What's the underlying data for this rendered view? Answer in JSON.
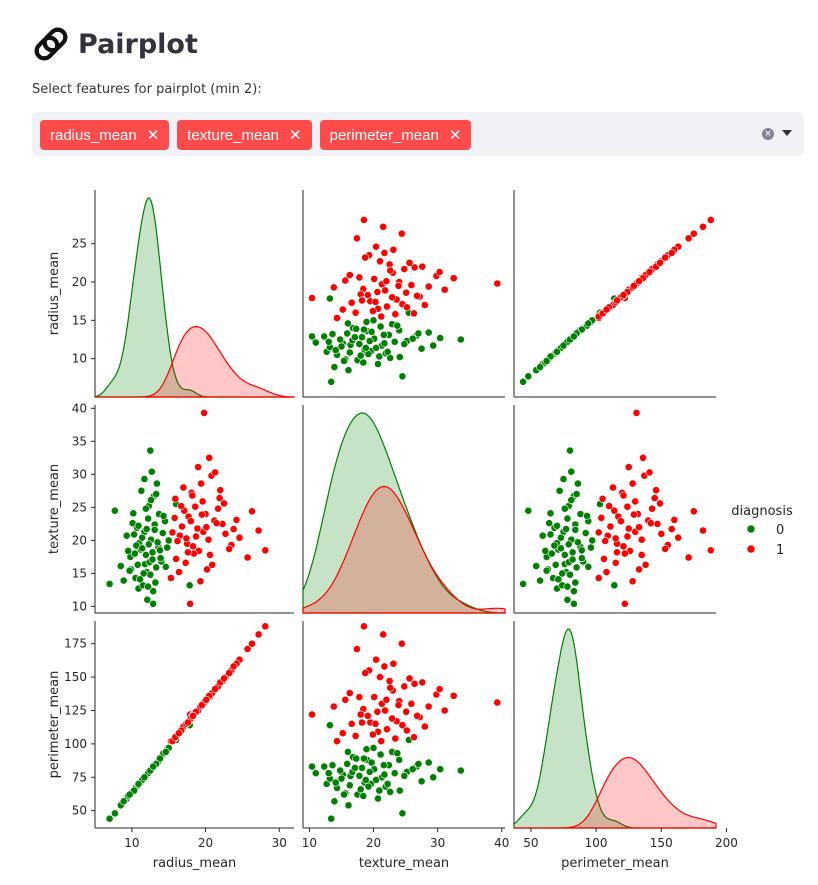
{
  "page": {
    "title": "Pairplot",
    "select_label": "Select features for pairplot (min 2):",
    "selected_features": [
      "radius_mean",
      "texture_mean",
      "perimeter_mean"
    ]
  },
  "colors": {
    "accent": "#ff4b4b",
    "benign": "#008000",
    "malignant": "#ff0000"
  },
  "chart_data": {
    "type": "scatter",
    "subtype": "pairplot",
    "variables": [
      "radius_mean",
      "texture_mean",
      "perimeter_mean"
    ],
    "hue": "diagnosis",
    "legend": {
      "title": "diagnosis",
      "placement": "right",
      "entries": [
        {
          "label": "0",
          "color": "#008000"
        },
        {
          "label": "1",
          "color": "#ff0000"
        }
      ]
    },
    "axes": {
      "radius_mean": {
        "range": [
          5,
          32
        ],
        "ticks": [
          10,
          15,
          20,
          25
        ],
        "xticks": [
          10,
          20,
          30
        ]
      },
      "texture_mean": {
        "range": [
          9,
          40.5
        ],
        "ticks": [
          10,
          15,
          20,
          25,
          30,
          35,
          40
        ],
        "xticks": [
          10,
          20,
          30,
          40
        ]
      },
      "perimeter_mean": {
        "range": [
          37,
          192
        ],
        "ticks": [
          50,
          75,
          100,
          125,
          150,
          175
        ],
        "xticks": [
          50,
          100,
          150,
          200
        ]
      }
    },
    "series": [
      {
        "name": "0",
        "color": "#008000",
        "points": [
          [
            12.0,
            15.2,
            77
          ],
          [
            11.2,
            18.6,
            71
          ],
          [
            13.1,
            22.4,
            84
          ],
          [
            10.5,
            14.3,
            67
          ],
          [
            12.6,
            20.1,
            81
          ],
          [
            9.8,
            17.5,
            62
          ],
          [
            14.0,
            16.8,
            90
          ],
          [
            11.7,
            21.3,
            75
          ],
          [
            13.6,
            19.0,
            88
          ],
          [
            10.9,
            12.7,
            70
          ],
          [
            12.3,
            25.2,
            79
          ],
          [
            8.5,
            16.1,
            54
          ],
          [
            13.4,
            28.6,
            86
          ],
          [
            11.5,
            13.2,
            74
          ],
          [
            12.8,
            18.2,
            82
          ],
          [
            9.3,
            20.7,
            59
          ],
          [
            14.5,
            22.9,
            94
          ],
          [
            10.2,
            24.1,
            65
          ],
          [
            12.1,
            11.0,
            78
          ],
          [
            13.9,
            17.3,
            89
          ],
          [
            11.0,
            19.6,
            70
          ],
          [
            12.5,
            14.8,
            80
          ],
          [
            7.7,
            24.5,
            48
          ],
          [
            13.0,
            26.7,
            83
          ],
          [
            11.8,
            16.4,
            76
          ],
          [
            10.7,
            21.9,
            68
          ],
          [
            12.9,
            12.3,
            83
          ],
          [
            14.8,
            18.9,
            96
          ],
          [
            9.9,
            15.6,
            63
          ],
          [
            12.2,
            23.3,
            78
          ],
          [
            11.4,
            20.4,
            73
          ],
          [
            13.3,
            15.9,
            85
          ],
          [
            10.4,
            18.0,
            66
          ],
          [
            12.7,
            30.4,
            81
          ],
          [
            14.2,
            21.1,
            92
          ],
          [
            11.9,
            17.8,
            76
          ],
          [
            8.9,
            13.9,
            57
          ],
          [
            13.7,
            24.0,
            88
          ],
          [
            10.1,
            22.6,
            64
          ],
          [
            12.4,
            16.7,
            79
          ],
          [
            11.3,
            27.5,
            72
          ],
          [
            13.2,
            13.6,
            84
          ],
          [
            15.0,
            20.0,
            97
          ],
          [
            10.6,
            19.2,
            68
          ],
          [
            12.0,
            21.7,
            77
          ],
          [
            9.5,
            18.4,
            61
          ],
          [
            11.6,
            15.0,
            74
          ],
          [
            13.5,
            19.7,
            86
          ],
          [
            12.6,
            26.1,
            81
          ],
          [
            10.8,
            16.3,
            69
          ],
          [
            14.3,
            23.7,
            93
          ],
          [
            11.1,
            14.1,
            71
          ],
          [
            6.98,
            13.4,
            44
          ],
          [
            12.3,
            19.4,
            79
          ],
          [
            13.8,
            18.5,
            89
          ],
          [
            10.3,
            20.9,
            65
          ],
          [
            11.9,
            24.8,
            76
          ],
          [
            12.8,
            17.1,
            82
          ],
          [
            9.7,
            15.4,
            62
          ],
          [
            13.1,
            21.6,
            84
          ],
          [
            11.4,
            18.8,
            73
          ],
          [
            14.6,
            16.0,
            94
          ],
          [
            10.9,
            22.2,
            70
          ],
          [
            12.2,
            13.0,
            78
          ],
          [
            13.3,
            27.0,
            85
          ],
          [
            17.85,
            13.2,
            114
          ],
          [
            12.5,
            33.6,
            80
          ],
          [
            11.7,
            29.3,
            75
          ],
          [
            16.0,
            25.5,
            103
          ],
          [
            12.9,
            10.4,
            83
          ]
        ]
      },
      {
        "name": "1",
        "color": "#ff0000",
        "points": [
          [
            17.9,
            10.4,
            122
          ],
          [
            20.6,
            17.8,
            135
          ],
          [
            19.7,
            21.3,
            130
          ],
          [
            15.3,
            14.3,
            102
          ],
          [
            22.3,
            22.5,
            147
          ],
          [
            18.6,
            25.1,
            124
          ],
          [
            16.5,
            20.7,
            109
          ],
          [
            21.2,
            23.0,
            140
          ],
          [
            19.1,
            18.4,
            126
          ],
          [
            17.1,
            24.5,
            114
          ],
          [
            23.5,
            19.3,
            155
          ],
          [
            18.1,
            27.2,
            120
          ],
          [
            20.2,
            15.6,
            133
          ],
          [
            16.8,
            22.1,
            111
          ],
          [
            24.6,
            20.4,
            163
          ],
          [
            19.4,
            28.6,
            128
          ],
          [
            17.5,
            19.5,
            116
          ],
          [
            21.9,
            26.4,
            145
          ],
          [
            15.8,
            23.4,
            104
          ],
          [
            18.9,
            21.8,
            125
          ],
          [
            25.7,
            17.4,
            171
          ],
          [
            20.0,
            24.0,
            132
          ],
          [
            17.3,
            16.6,
            115
          ],
          [
            22.7,
            21.0,
            150
          ],
          [
            19.0,
            31.1,
            125
          ],
          [
            16.2,
            19.9,
            107
          ],
          [
            21.5,
            22.6,
            142
          ],
          [
            18.4,
            18.0,
            122
          ],
          [
            27.2,
            21.5,
            182
          ],
          [
            20.8,
            29.8,
            137
          ],
          [
            17.7,
            23.6,
            117
          ],
          [
            23.2,
            18.7,
            153
          ],
          [
            19.6,
            25.9,
            130
          ],
          [
            16.0,
            17.2,
            106
          ],
          [
            20.4,
            20.1,
            135
          ],
          [
            28.1,
            18.5,
            188
          ],
          [
            18.2,
            26.8,
            121
          ],
          [
            21.7,
            24.8,
            143
          ],
          [
            15.5,
            21.2,
            102
          ],
          [
            19.8,
            39.3,
            131
          ],
          [
            24.2,
            23.1,
            160
          ],
          [
            17.0,
            28.0,
            113
          ],
          [
            20.9,
            16.3,
            138
          ],
          [
            18.7,
            20.6,
            124
          ],
          [
            22.0,
            27.6,
            146
          ],
          [
            16.7,
            25.2,
            110
          ],
          [
            19.3,
            13.8,
            128
          ],
          [
            26.3,
            24.4,
            175
          ],
          [
            18.0,
            22.9,
            119
          ],
          [
            20.5,
            32.5,
            136
          ],
          [
            17.4,
            20.3,
            115
          ],
          [
            21.3,
            30.3,
            141
          ],
          [
            15.9,
            26.3,
            105
          ],
          [
            23.8,
            21.7,
            158
          ],
          [
            19.5,
            23.9,
            129
          ],
          [
            16.4,
            15.2,
            108
          ],
          [
            22.5,
            25.6,
            149
          ],
          [
            18.3,
            19.1,
            121
          ],
          [
            20.1,
            22.0,
            133
          ],
          [
            17.6,
            18.2,
            116
          ]
        ]
      }
    ]
  }
}
